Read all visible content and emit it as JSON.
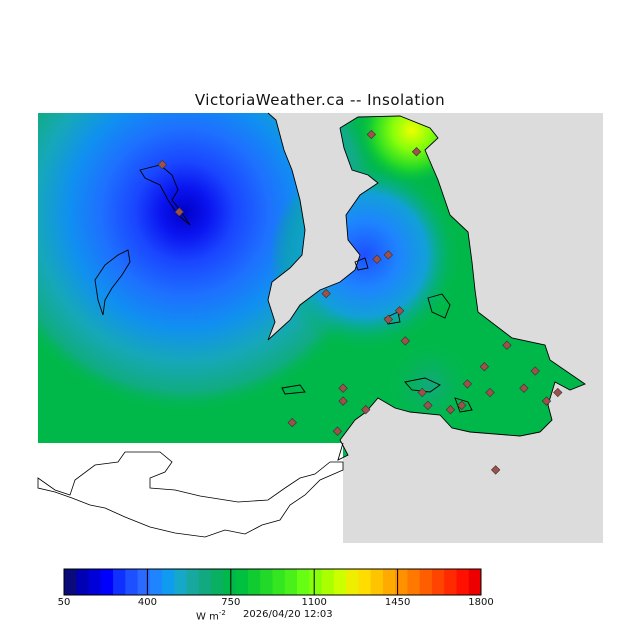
{
  "title": "VictoriaWeather.ca  --  Insolation",
  "colorbar": {
    "ticks": [
      "50",
      "400",
      "750",
      "1100",
      "1450",
      "1800"
    ],
    "units": "W m",
    "units_exp": "-2",
    "timestamp": "2026/04/20 12:03",
    "colors": [
      "#0a0a7a",
      "#0000b4",
      "#0000d8",
      "#0000ff",
      "#1030ff",
      "#1e50ff",
      "#2a6aff",
      "#1e84ff",
      "#0f9cf0",
      "#15a8c8",
      "#18a8a0",
      "#12a880",
      "#08b060",
      "#00b84a",
      "#00c040",
      "#10cc30",
      "#22d828",
      "#33e61f",
      "#4af01a",
      "#66ff14",
      "#88ff0a",
      "#aaff00",
      "#ccff00",
      "#eeee00",
      "#ffdd00",
      "#ffc400",
      "#ffaa00",
      "#ff9000",
      "#ff7800",
      "#ff5e00",
      "#ff4400",
      "#ff2a00",
      "#ff1000",
      "#ee0000"
    ]
  },
  "map": {
    "land_color": "#00b84a",
    "outside_color": "#dcdcdc",
    "water_color": "#ffffff",
    "station_color": "#a0504a",
    "stations": [
      {
        "lon": 0.22,
        "lat": 0.88
      },
      {
        "lon": 0.25,
        "lat": 0.77
      },
      {
        "lon": 0.59,
        "lat": 0.95
      },
      {
        "lon": 0.67,
        "lat": 0.91
      },
      {
        "lon": 0.62,
        "lat": 0.67
      },
      {
        "lon": 0.6,
        "lat": 0.66
      },
      {
        "lon": 0.51,
        "lat": 0.58
      },
      {
        "lon": 0.64,
        "lat": 0.54
      },
      {
        "lon": 0.62,
        "lat": 0.52
      },
      {
        "lon": 0.76,
        "lat": 0.37
      },
      {
        "lon": 0.73,
        "lat": 0.31
      },
      {
        "lon": 0.83,
        "lat": 0.46
      },
      {
        "lon": 0.88,
        "lat": 0.4
      },
      {
        "lon": 0.86,
        "lat": 0.36
      },
      {
        "lon": 0.8,
        "lat": 0.35
      },
      {
        "lon": 0.92,
        "lat": 0.35
      },
      {
        "lon": 0.9,
        "lat": 0.33
      },
      {
        "lon": 0.68,
        "lat": 0.35
      },
      {
        "lon": 0.69,
        "lat": 0.32
      },
      {
        "lon": 0.54,
        "lat": 0.36
      },
      {
        "lon": 0.54,
        "lat": 0.33
      },
      {
        "lon": 0.58,
        "lat": 0.31
      },
      {
        "lon": 0.45,
        "lat": 0.28
      },
      {
        "lon": 0.53,
        "lat": 0.26
      },
      {
        "lon": 0.75,
        "lat": 0.32
      },
      {
        "lon": 0.79,
        "lat": 0.41
      },
      {
        "lon": 0.65,
        "lat": 0.47
      },
      {
        "lon": 0.81,
        "lat": 0.17
      }
    ]
  }
}
